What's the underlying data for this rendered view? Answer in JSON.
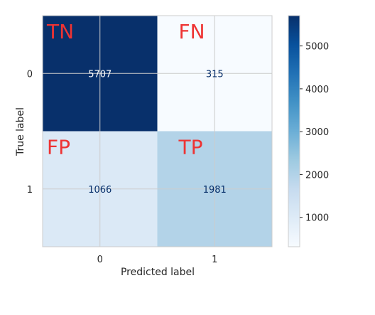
{
  "chart_data": {
    "type": "heatmap",
    "title": "",
    "xlabel": "Predicted label",
    "ylabel": "True label",
    "x_tick_labels": [
      "0",
      "1"
    ],
    "y_tick_labels": [
      "0",
      "1"
    ],
    "matrix": [
      [
        5707,
        315
      ],
      [
        1066,
        1981
      ]
    ],
    "cell_labels": [
      "5707",
      "315",
      "1066",
      "1981"
    ],
    "annotations": [
      [
        "TN",
        "FN"
      ],
      [
        "FP",
        "TP"
      ]
    ],
    "colormap": "Blues",
    "colorbar": {
      "min": 315,
      "max": 5707,
      "ticks": [
        1000,
        2000,
        3000,
        4000,
        5000
      ],
      "tick_labels": [
        "1000",
        "2000",
        "3000",
        "4000",
        "5000"
      ]
    },
    "grid": true,
    "colors": {
      "blues_low": "#f7fbff",
      "blues_high": "#08306b",
      "annotation": "#ee3333",
      "text_on_dark": "#ffffff",
      "text_on_light": "#08306b"
    }
  }
}
